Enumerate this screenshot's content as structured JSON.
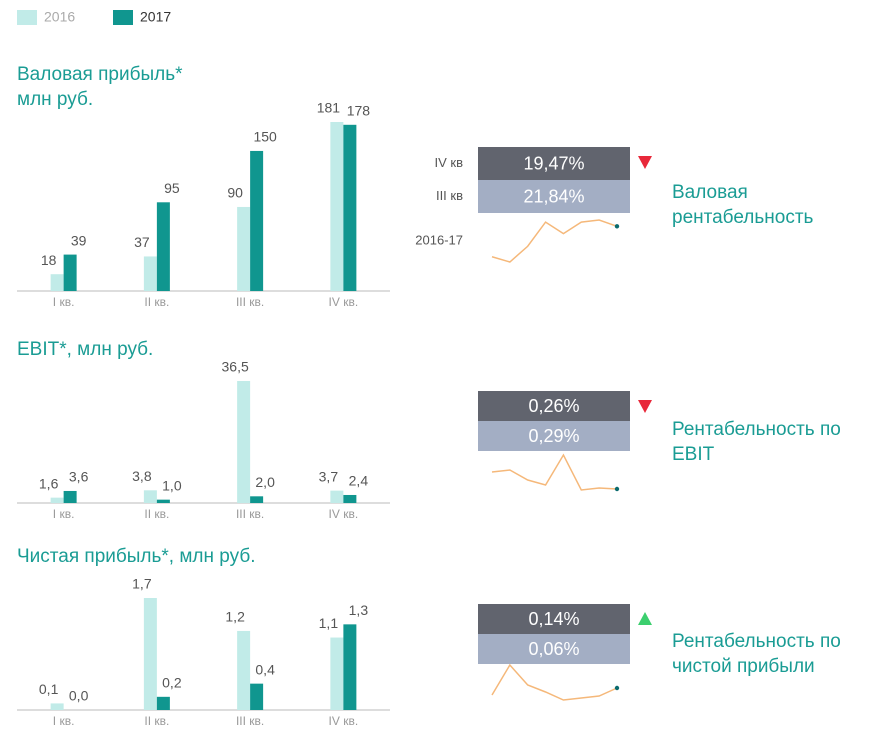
{
  "legend": [
    {
      "name": "2016",
      "color": "#c1ebe8"
    },
    {
      "name": "2017",
      "color": "#10968f"
    }
  ],
  "chart_data": [
    {
      "type": "bar",
      "title": [
        "Валовая прибыль*",
        "млн руб."
      ],
      "categories": [
        "I кв.",
        "II кв.",
        "III кв.",
        "IV кв."
      ],
      "series": [
        {
          "values": [
            18,
            37,
            90,
            181
          ]
        },
        {
          "values": [
            39,
            95,
            150,
            178
          ]
        }
      ]
    },
    {
      "type": "bar",
      "title": [
        "EBIT*, млн руб."
      ],
      "categories": [
        "I кв.",
        "II кв.",
        "III кв.",
        "IV кв."
      ],
      "series": [
        {
          "values": [
            1.6,
            3.8,
            36.5,
            3.7
          ],
          "value_labels": [
            "1,6",
            "3,8",
            "36,5",
            "3,7"
          ]
        },
        {
          "values": [
            3.6,
            1.0,
            2.0,
            2.4
          ],
          "value_labels": [
            "3,6",
            "1,0",
            "2,0",
            "2,4"
          ]
        }
      ]
    },
    {
      "type": "bar",
      "title": [
        "Чистая прибыль*, млн руб."
      ],
      "categories": [
        "I кв.",
        "II кв.",
        "III кв.",
        "IV кв."
      ],
      "series": [
        {
          "values": [
            0.1,
            1.7,
            1.2,
            1.1
          ],
          "value_labels": [
            "0,1",
            "1,7",
            "1,2",
            "1,1"
          ]
        },
        {
          "values": [
            0.0,
            0.2,
            0.4,
            1.3
          ],
          "value_labels": [
            "0,0",
            "0,2",
            "0,4",
            "1,3"
          ]
        }
      ]
    }
  ],
  "kpis": [
    {
      "current_label": "IV кв",
      "previous_label": "III кв",
      "sparkline_label": "2016-17",
      "current": "19,47%",
      "previous": "21,84%",
      "trend": "down",
      "caption": [
        "Валовая",
        "рентабельность"
      ],
      "sparkline": {
        "color": "#f5b87a",
        "values": [
          7,
          2,
          17,
          40,
          29,
          40,
          42,
          36
        ]
      }
    },
    {
      "current": "0,26%",
      "previous": "0,29%",
      "trend": "down",
      "caption": [
        "Рентабельность по",
        "EBIT"
      ],
      "sparkline": {
        "color": "#f5b87a",
        "values": [
          18,
          20,
          10,
          5,
          35,
          0,
          2,
          1
        ]
      }
    },
    {
      "current": "0,14%",
      "previous": "0,06%",
      "trend": "up",
      "caption": [
        "Рентабельность по",
        "чистой прибыли"
      ],
      "sparkline": {
        "color": "#f5b87a",
        "values": [
          5,
          35,
          15,
          8,
          0,
          2,
          4,
          12
        ]
      }
    }
  ]
}
